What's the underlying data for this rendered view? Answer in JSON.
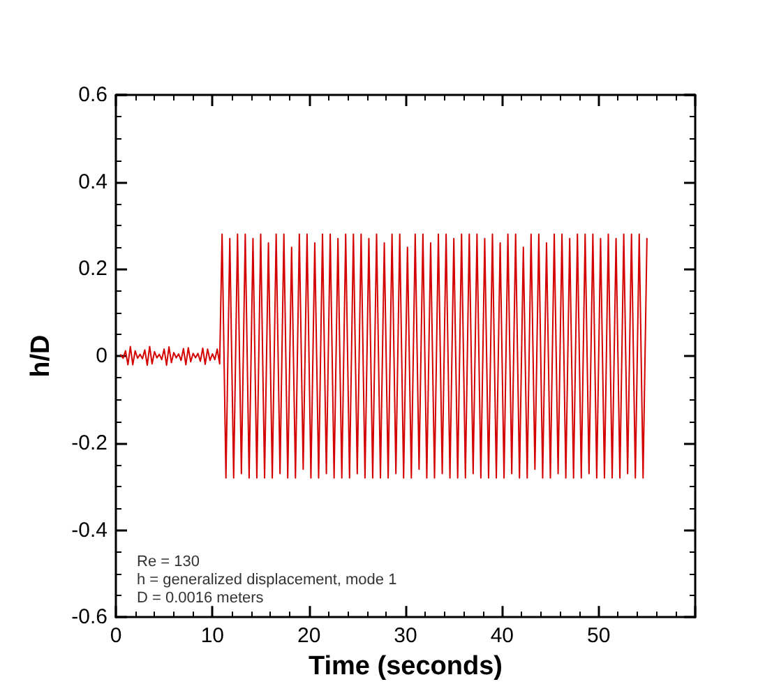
{
  "chart_data": {
    "type": "line",
    "xlabel": "Time (seconds)",
    "ylabel": "h/D",
    "annotations": [
      "Re = 130",
      "h = generalized displacement, mode 1",
      "D = 0.0016 meters"
    ],
    "xlim": [
      0,
      60
    ],
    "xticks": [
      0,
      10,
      20,
      30,
      40,
      50
    ],
    "ylim": [
      -0.6,
      0.6
    ],
    "yticks": [
      -0.6,
      -0.4,
      -0.2,
      0,
      0.2,
      0.4,
      0.6
    ],
    "grid": false,
    "marker": "none",
    "line_style": "solid",
    "series": [
      {
        "color": "#d40000",
        "x": [
          0.5,
          0.75,
          1.0,
          1.25,
          1.5,
          1.75,
          2.0,
          2.25,
          2.5,
          2.75,
          3.0,
          3.25,
          3.5,
          3.75,
          4.0,
          4.25,
          4.5,
          4.75,
          5.0,
          5.25,
          5.5,
          5.75,
          6.0,
          6.25,
          6.5,
          6.75,
          7.0,
          7.25,
          7.5,
          7.75,
          8.0,
          8.25,
          8.5,
          8.75,
          9.0,
          9.25,
          9.5,
          9.75,
          10.0,
          10.25,
          10.5,
          10.75,
          11.0,
          11.4,
          11.8,
          12.2,
          12.6,
          13.0,
          13.4,
          13.8,
          14.2,
          14.6,
          15.0,
          15.4,
          15.8,
          16.2,
          16.6,
          17.0,
          17.4,
          17.8,
          18.2,
          18.6,
          19.0,
          19.4,
          19.8,
          20.2,
          20.6,
          21.0,
          21.4,
          21.8,
          22.2,
          22.6,
          23.0,
          23.4,
          23.8,
          24.2,
          24.6,
          25.0,
          25.4,
          25.8,
          26.2,
          26.6,
          27.0,
          27.4,
          27.8,
          28.2,
          28.6,
          29.0,
          29.4,
          29.8,
          30.2,
          30.6,
          31.0,
          31.4,
          31.8,
          32.2,
          32.6,
          33.0,
          33.4,
          33.8,
          34.2,
          34.6,
          35.0,
          35.4,
          35.8,
          36.2,
          36.6,
          37.0,
          37.4,
          37.8,
          38.2,
          38.6,
          39.0,
          39.4,
          39.8,
          40.2,
          40.6,
          41.0,
          41.4,
          41.8,
          42.2,
          42.6,
          43.0,
          43.4,
          43.8,
          44.2,
          44.6,
          45.0,
          45.4,
          45.8,
          46.2,
          46.6,
          47.0,
          47.4,
          47.8,
          48.2,
          48.6,
          49.0,
          49.4,
          49.8,
          50.2,
          50.6,
          51.0,
          51.4,
          51.8,
          52.2,
          52.6,
          53.0,
          53.4,
          53.8,
          54.2,
          54.6,
          55.0
        ],
        "values": [
          0.003,
          -0.005,
          0.012,
          -0.02,
          0.022,
          -0.02,
          0.012,
          -0.005,
          0.004,
          -0.006,
          0.014,
          -0.021,
          0.022,
          -0.018,
          0.01,
          -0.004,
          0.004,
          -0.008,
          0.016,
          -0.021,
          0.021,
          -0.015,
          0.008,
          -0.004,
          0.005,
          -0.01,
          0.017,
          -0.02,
          0.019,
          -0.013,
          0.006,
          -0.004,
          0.006,
          -0.012,
          0.018,
          -0.019,
          0.016,
          -0.01,
          0.005,
          -0.008,
          0.016,
          -0.018,
          0.28,
          -0.28,
          0.27,
          -0.28,
          0.28,
          -0.27,
          0.28,
          -0.28,
          0.27,
          -0.28,
          0.28,
          -0.28,
          0.26,
          -0.28,
          0.28,
          -0.27,
          0.28,
          -0.28,
          0.25,
          -0.28,
          0.28,
          -0.26,
          0.28,
          -0.28,
          0.26,
          -0.28,
          0.28,
          -0.27,
          0.28,
          -0.28,
          0.27,
          -0.28,
          0.28,
          -0.28,
          0.28,
          -0.27,
          0.28,
          -0.28,
          0.27,
          -0.28,
          0.28,
          -0.28,
          0.26,
          -0.28,
          0.28,
          -0.27,
          0.28,
          -0.28,
          0.25,
          -0.28,
          0.28,
          -0.26,
          0.28,
          -0.28,
          0.26,
          -0.28,
          0.28,
          -0.27,
          0.28,
          -0.28,
          0.27,
          -0.28,
          0.28,
          -0.28,
          0.28,
          -0.27,
          0.28,
          -0.28,
          0.27,
          -0.28,
          0.28,
          -0.28,
          0.26,
          -0.28,
          0.28,
          -0.27,
          0.28,
          -0.28,
          0.25,
          -0.28,
          0.28,
          -0.26,
          0.28,
          -0.28,
          0.26,
          -0.28,
          0.28,
          -0.27,
          0.28,
          -0.28,
          0.27,
          -0.28,
          0.28,
          -0.28,
          0.28,
          -0.27,
          0.28,
          -0.28,
          0.27,
          -0.28,
          0.28,
          -0.28,
          0.27,
          -0.28,
          0.28,
          -0.27,
          0.28,
          -0.28,
          0.28,
          -0.28,
          0.27
        ]
      }
    ]
  }
}
